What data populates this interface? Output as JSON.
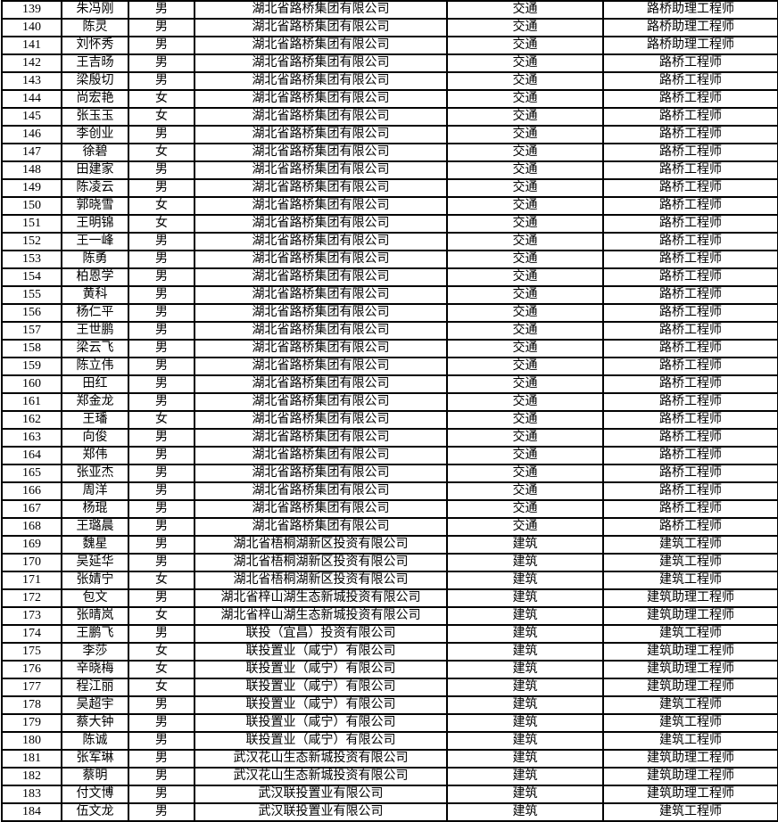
{
  "table": {
    "grid_color": "#000000",
    "text_color": "#000000",
    "background_color": "#ffffff",
    "visible_row_range": {
      "first": "139",
      "last": "184"
    },
    "rows": [
      {
        "no": "139",
        "name": "朱冯刚",
        "gender": "男",
        "company": "湖北省路桥集团有限公司",
        "category": "交通",
        "title": "路桥助理工程师"
      },
      {
        "no": "140",
        "name": "陈灵",
        "gender": "男",
        "company": "湖北省路桥集团有限公司",
        "category": "交通",
        "title": "路桥助理工程师"
      },
      {
        "no": "141",
        "name": "刘怀秀",
        "gender": "男",
        "company": "湖北省路桥集团有限公司",
        "category": "交通",
        "title": "路桥助理工程师"
      },
      {
        "no": "142",
        "name": "王吉旸",
        "gender": "男",
        "company": "湖北省路桥集团有限公司",
        "category": "交通",
        "title": "路桥工程师"
      },
      {
        "no": "143",
        "name": "梁殷切",
        "gender": "男",
        "company": "湖北省路桥集团有限公司",
        "category": "交通",
        "title": "路桥工程师"
      },
      {
        "no": "144",
        "name": "尚宏艳",
        "gender": "女",
        "company": "湖北省路桥集团有限公司",
        "category": "交通",
        "title": "路桥工程师"
      },
      {
        "no": "145",
        "name": "张玉玉",
        "gender": "女",
        "company": "湖北省路桥集团有限公司",
        "category": "交通",
        "title": "路桥工程师"
      },
      {
        "no": "146",
        "name": "李创业",
        "gender": "男",
        "company": "湖北省路桥集团有限公司",
        "category": "交通",
        "title": "路桥工程师"
      },
      {
        "no": "147",
        "name": "徐碧",
        "gender": "女",
        "company": "湖北省路桥集团有限公司",
        "category": "交通",
        "title": "路桥工程师"
      },
      {
        "no": "148",
        "name": "田建家",
        "gender": "男",
        "company": "湖北省路桥集团有限公司",
        "category": "交通",
        "title": "路桥工程师"
      },
      {
        "no": "149",
        "name": "陈凌云",
        "gender": "男",
        "company": "湖北省路桥集团有限公司",
        "category": "交通",
        "title": "路桥工程师"
      },
      {
        "no": "150",
        "name": "郭晓雪",
        "gender": "女",
        "company": "湖北省路桥集团有限公司",
        "category": "交通",
        "title": "路桥工程师"
      },
      {
        "no": "151",
        "name": "王明锦",
        "gender": "女",
        "company": "湖北省路桥集团有限公司",
        "category": "交通",
        "title": "路桥工程师"
      },
      {
        "no": "152",
        "name": "王一峰",
        "gender": "男",
        "company": "湖北省路桥集团有限公司",
        "category": "交通",
        "title": "路桥工程师"
      },
      {
        "no": "153",
        "name": "陈勇",
        "gender": "男",
        "company": "湖北省路桥集团有限公司",
        "category": "交通",
        "title": "路桥工程师"
      },
      {
        "no": "154",
        "name": "柏恩学",
        "gender": "男",
        "company": "湖北省路桥集团有限公司",
        "category": "交通",
        "title": "路桥工程师"
      },
      {
        "no": "155",
        "name": "黄科",
        "gender": "男",
        "company": "湖北省路桥集团有限公司",
        "category": "交通",
        "title": "路桥工程师"
      },
      {
        "no": "156",
        "name": "杨仁平",
        "gender": "男",
        "company": "湖北省路桥集团有限公司",
        "category": "交通",
        "title": "路桥工程师"
      },
      {
        "no": "157",
        "name": "王世鹏",
        "gender": "男",
        "company": "湖北省路桥集团有限公司",
        "category": "交通",
        "title": "路桥工程师"
      },
      {
        "no": "158",
        "name": "梁云飞",
        "gender": "男",
        "company": "湖北省路桥集团有限公司",
        "category": "交通",
        "title": "路桥工程师"
      },
      {
        "no": "159",
        "name": "陈立伟",
        "gender": "男",
        "company": "湖北省路桥集团有限公司",
        "category": "交通",
        "title": "路桥工程师"
      },
      {
        "no": "160",
        "name": "田红",
        "gender": "男",
        "company": "湖北省路桥集团有限公司",
        "category": "交通",
        "title": "路桥工程师"
      },
      {
        "no": "161",
        "name": "郑金龙",
        "gender": "男",
        "company": "湖北省路桥集团有限公司",
        "category": "交通",
        "title": "路桥工程师"
      },
      {
        "no": "162",
        "name": "王璠",
        "gender": "女",
        "company": "湖北省路桥集团有限公司",
        "category": "交通",
        "title": "路桥工程师"
      },
      {
        "no": "163",
        "name": "向俊",
        "gender": "男",
        "company": "湖北省路桥集团有限公司",
        "category": "交通",
        "title": "路桥工程师"
      },
      {
        "no": "164",
        "name": "郑伟",
        "gender": "男",
        "company": "湖北省路桥集团有限公司",
        "category": "交通",
        "title": "路桥工程师"
      },
      {
        "no": "165",
        "name": "张亚杰",
        "gender": "男",
        "company": "湖北省路桥集团有限公司",
        "category": "交通",
        "title": "路桥工程师"
      },
      {
        "no": "166",
        "name": "周洋",
        "gender": "男",
        "company": "湖北省路桥集团有限公司",
        "category": "交通",
        "title": "路桥工程师"
      },
      {
        "no": "167",
        "name": "杨琨",
        "gender": "男",
        "company": "湖北省路桥集团有限公司",
        "category": "交通",
        "title": "路桥工程师"
      },
      {
        "no": "168",
        "name": "王璐晨",
        "gender": "男",
        "company": "湖北省路桥集团有限公司",
        "category": "交通",
        "title": "路桥工程师"
      },
      {
        "no": "169",
        "name": "魏星",
        "gender": "男",
        "company": "湖北省梧桐湖新区投资有限公司",
        "category": "建筑",
        "title": "建筑工程师"
      },
      {
        "no": "170",
        "name": "吴延华",
        "gender": "男",
        "company": "湖北省梧桐湖新区投资有限公司",
        "category": "建筑",
        "title": "建筑工程师"
      },
      {
        "no": "171",
        "name": "张婧宁",
        "gender": "女",
        "company": "湖北省梧桐湖新区投资有限公司",
        "category": "建筑",
        "title": "建筑工程师"
      },
      {
        "no": "172",
        "name": "包文",
        "gender": "男",
        "company": "湖北省梓山湖生态新城投资有限公司",
        "category": "建筑",
        "title": "建筑助理工程师"
      },
      {
        "no": "173",
        "name": "张晴岚",
        "gender": "女",
        "company": "湖北省梓山湖生态新城投资有限公司",
        "category": "建筑",
        "title": "建筑助理工程师"
      },
      {
        "no": "174",
        "name": "王鹏飞",
        "gender": "男",
        "company": "联投（宜昌）投资有限公司",
        "category": "建筑",
        "title": "建筑工程师"
      },
      {
        "no": "175",
        "name": "李莎",
        "gender": "女",
        "company": "联投置业（咸宁）有限公司",
        "category": "建筑",
        "title": "建筑助理工程师"
      },
      {
        "no": "176",
        "name": "辛晓梅",
        "gender": "女",
        "company": "联投置业（咸宁）有限公司",
        "category": "建筑",
        "title": "建筑助理工程师"
      },
      {
        "no": "177",
        "name": "程江丽",
        "gender": "女",
        "company": "联投置业（咸宁）有限公司",
        "category": "建筑",
        "title": "建筑助理工程师"
      },
      {
        "no": "178",
        "name": "吴超宇",
        "gender": "男",
        "company": "联投置业（咸宁）有限公司",
        "category": "建筑",
        "title": "建筑工程师"
      },
      {
        "no": "179",
        "name": "蔡大钟",
        "gender": "男",
        "company": "联投置业（咸宁）有限公司",
        "category": "建筑",
        "title": "建筑工程师"
      },
      {
        "no": "180",
        "name": "陈诚",
        "gender": "男",
        "company": "联投置业（咸宁）有限公司",
        "category": "建筑",
        "title": "建筑工程师"
      },
      {
        "no": "181",
        "name": "张军琳",
        "gender": "男",
        "company": "武汉花山生态新城投资有限公司",
        "category": "建筑",
        "title": "建筑助理工程师"
      },
      {
        "no": "182",
        "name": "蔡明",
        "gender": "男",
        "company": "武汉花山生态新城投资有限公司",
        "category": "建筑",
        "title": "建筑助理工程师"
      },
      {
        "no": "183",
        "name": "付文博",
        "gender": "男",
        "company": "武汉联投置业有限公司",
        "category": "建筑",
        "title": "建筑助理工程师"
      },
      {
        "no": "184",
        "name": "伍文龙",
        "gender": "男",
        "company": "武汉联投置业有限公司",
        "category": "建筑",
        "title": "建筑工程师"
      }
    ]
  }
}
